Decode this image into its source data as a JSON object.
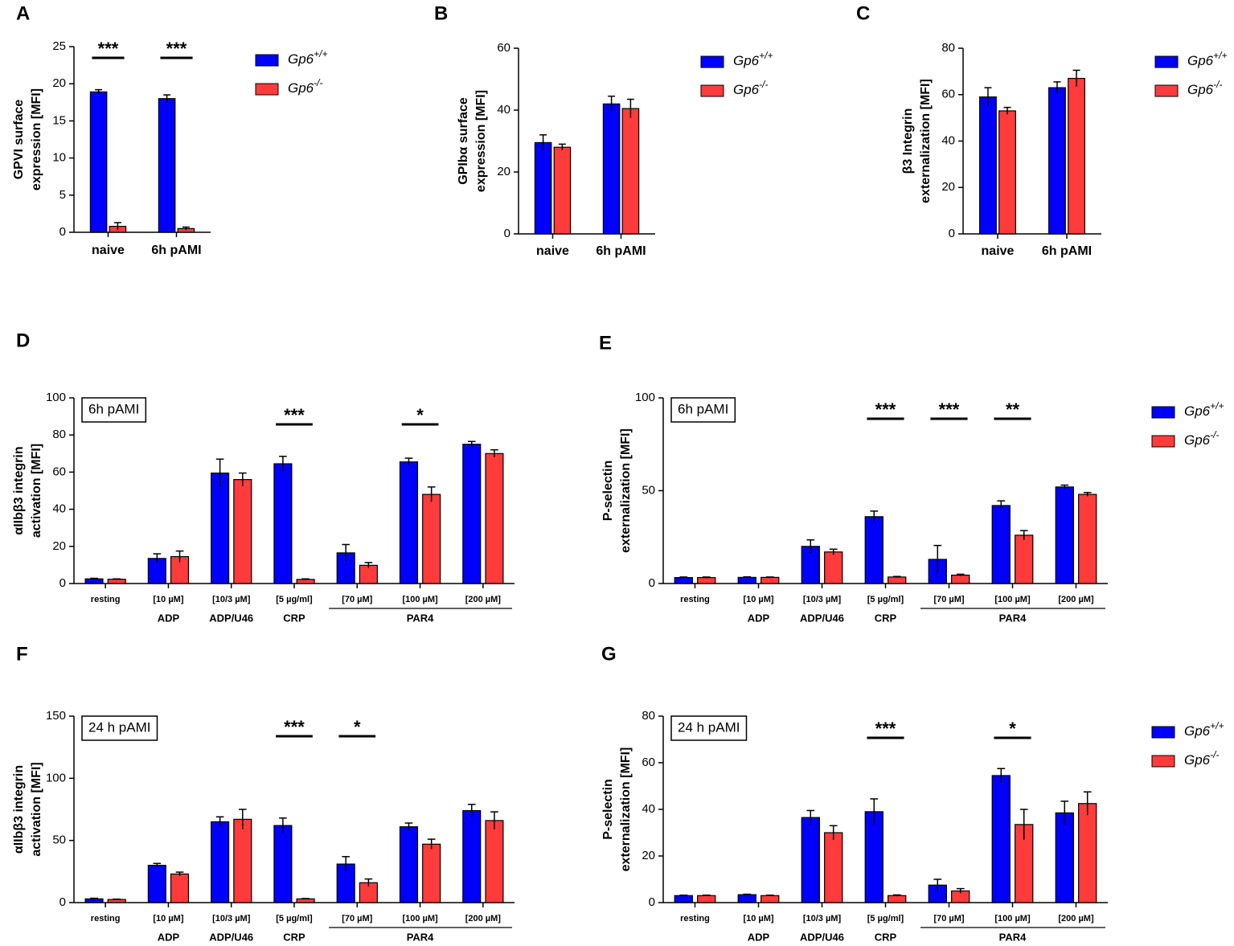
{
  "chart_data": [
    {
      "type": "bar",
      "panel": "A",
      "ylabel": [
        "GPVI surface",
        "expression [MFI]"
      ],
      "categories": [
        "naive",
        "6h pAMI"
      ],
      "ylim": [
        0,
        25
      ],
      "yticks": [
        0,
        5,
        10,
        15,
        20,
        25
      ],
      "significance": [
        "***",
        "***"
      ],
      "series": [
        {
          "name": "Gp6+/+",
          "color": "#0000ff",
          "values": [
            18.9,
            18.0
          ],
          "errors": [
            0.3,
            0.5
          ]
        },
        {
          "name": "Gp6-/-",
          "color": "#ff3b3b",
          "values": [
            0.8,
            0.5
          ],
          "errors": [
            0.5,
            0.2
          ]
        }
      ]
    },
    {
      "type": "bar",
      "panel": "B",
      "ylabel": [
        "GPIbα surface",
        "expression [MFI]"
      ],
      "categories": [
        "naive",
        "6h pAMI"
      ],
      "ylim": [
        0,
        60
      ],
      "yticks": [
        0,
        20,
        40,
        60
      ],
      "series": [
        {
          "name": "Gp6+/+",
          "color": "#0000ff",
          "values": [
            29.5,
            42
          ],
          "errors": [
            2.5,
            2.5
          ]
        },
        {
          "name": "Gp6-/-",
          "color": "#ff3b3b",
          "values": [
            28,
            40.5
          ],
          "errors": [
            1,
            3
          ]
        }
      ]
    },
    {
      "type": "bar",
      "panel": "C",
      "ylabel": [
        "β3 Integrin",
        "externalization [MFI]"
      ],
      "categories": [
        "naive",
        "6h pAMI"
      ],
      "ylim": [
        0,
        80
      ],
      "yticks": [
        0,
        20,
        40,
        60,
        80
      ],
      "series": [
        {
          "name": "Gp6+/+",
          "color": "#0000ff",
          "values": [
            59,
            63
          ],
          "errors": [
            4,
            2.5
          ]
        },
        {
          "name": "Gp6-/-",
          "color": "#ff3b3b",
          "values": [
            53,
            67
          ],
          "errors": [
            1.5,
            3.5
          ]
        }
      ]
    },
    {
      "type": "bar",
      "panel": "D",
      "box_label": "6h pAMI",
      "ylabel": [
        "αIIbβ3 integrin",
        "activation [MFI]"
      ],
      "categories": [
        "resting",
        "[10 µM]",
        "[10/3 µM]",
        "[5 µg/ml]",
        "[70 µM]",
        "[100 µM]",
        "[200 µM]"
      ],
      "group_labels": [
        null,
        "ADP",
        "ADP/U46",
        "CRP",
        "PAR4",
        null,
        null
      ],
      "ylim": [
        0,
        100
      ],
      "yticks": [
        0,
        20,
        40,
        60,
        80,
        100
      ],
      "significance": [
        null,
        null,
        null,
        "***",
        null,
        "*",
        null
      ],
      "series": [
        {
          "name": "Gp6+/+",
          "color": "#0000ff",
          "values": [
            2.5,
            13.5,
            59.5,
            64.5,
            16.5,
            65.5,
            75
          ],
          "errors": [
            0.3,
            2.5,
            7.5,
            4,
            4.5,
            2,
            1.5
          ]
        },
        {
          "name": "Gp6-/-",
          "color": "#ff3b3b",
          "values": [
            2.3,
            14.5,
            56,
            2.2,
            9.8,
            48,
            70
          ],
          "errors": [
            0.2,
            3,
            3.5,
            0.3,
            1.5,
            4,
            2
          ]
        }
      ]
    },
    {
      "type": "bar",
      "panel": "E",
      "box_label": "6h pAMI",
      "ylabel": [
        "P-selectin",
        "externalization [MFI]"
      ],
      "categories": [
        "resting",
        "[10 µM]",
        "[10/3 µM]",
        "[5 µg/ml]",
        "[70 µM]",
        "[100 µM]",
        "[200 µM]"
      ],
      "group_labels": [
        null,
        "ADP",
        "ADP/U46",
        "CRP",
        "PAR4",
        null,
        null
      ],
      "ylim": [
        0,
        100
      ],
      "yticks": [
        0,
        50,
        100
      ],
      "significance": [
        null,
        null,
        null,
        "***",
        "***",
        "**",
        null
      ],
      "series": [
        {
          "name": "Gp6+/+",
          "color": "#0000ff",
          "values": [
            3.2,
            3.3,
            20,
            36,
            13,
            42,
            52
          ],
          "errors": [
            0.3,
            0.3,
            3.5,
            3,
            7.5,
            2.5,
            1
          ]
        },
        {
          "name": "Gp6-/-",
          "color": "#ff3b3b",
          "values": [
            3.2,
            3.3,
            17,
            3.5,
            4.5,
            26,
            48
          ],
          "errors": [
            0.3,
            0.2,
            1.5,
            0.3,
            0.5,
            2.5,
            1
          ]
        }
      ]
    },
    {
      "type": "bar",
      "panel": "F",
      "box_label": "24 h pAMI",
      "ylabel": [
        "αIIbβ3 integrin",
        "activation [MFI]"
      ],
      "categories": [
        "resting",
        "[10 µM]",
        "[10/3 µM]",
        "[5 µg/ml]",
        "[70 µM]",
        "[100 µM]",
        "[200 µM]"
      ],
      "group_labels": [
        null,
        "ADP",
        "ADP/U46",
        "CRP",
        "PAR4",
        null,
        null
      ],
      "ylim": [
        0,
        150
      ],
      "yticks": [
        0,
        50,
        100,
        150
      ],
      "significance": [
        null,
        null,
        null,
        "***",
        "*",
        null,
        null
      ],
      "series": [
        {
          "name": "Gp6+/+",
          "color": "#0000ff",
          "values": [
            3,
            30,
            65,
            62,
            31,
            61,
            74
          ],
          "errors": [
            0.5,
            1.5,
            4,
            6,
            6,
            3,
            5
          ]
        },
        {
          "name": "Gp6-/-",
          "color": "#ff3b3b",
          "values": [
            2.5,
            23,
            67,
            3,
            16,
            47,
            66
          ],
          "errors": [
            0.3,
            1.5,
            8,
            0.3,
            3,
            4,
            7
          ]
        }
      ]
    },
    {
      "type": "bar",
      "panel": "G",
      "box_label": "24 h pAMI",
      "ylabel": [
        "P-selectin",
        "externalization [MFI]"
      ],
      "categories": [
        "resting",
        "[10 µM]",
        "[10/3 µM]",
        "[5 µg/ml]",
        "[70 µM]",
        "[100 µM]",
        "[200 µM]"
      ],
      "group_labels": [
        null,
        "ADP",
        "ADP/U46",
        "CRP",
        "PAR4",
        null,
        null
      ],
      "ylim": [
        0,
        80
      ],
      "yticks": [
        0,
        20,
        40,
        60,
        80
      ],
      "significance": [
        null,
        null,
        null,
        "***",
        null,
        "*",
        null
      ],
      "series": [
        {
          "name": "Gp6+/+",
          "color": "#0000ff",
          "values": [
            3,
            3.4,
            36.5,
            39,
            7.5,
            54.5,
            38.5
          ],
          "errors": [
            0.2,
            0.2,
            3,
            5.5,
            2.5,
            3,
            5
          ]
        },
        {
          "name": "Gp6-/-",
          "color": "#ff3b3b",
          "values": [
            3,
            3,
            30,
            3,
            5,
            33.5,
            42.5
          ],
          "errors": [
            0.2,
            0.2,
            3,
            0.3,
            1,
            6.5,
            5
          ]
        }
      ]
    }
  ]
}
